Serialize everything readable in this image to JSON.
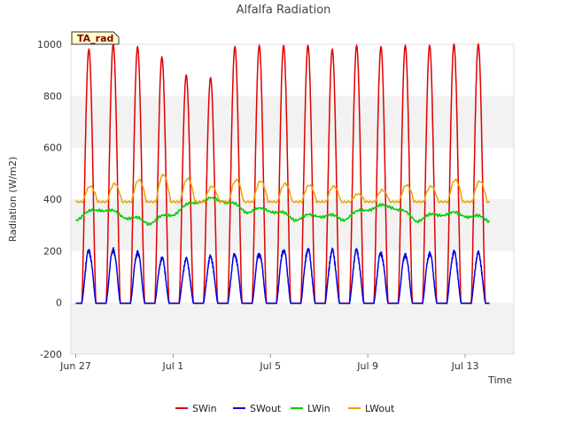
{
  "chart_data": {
    "type": "line",
    "title": "Alfalfa Radiation",
    "xlabel": "Time",
    "ylabel": "Radiation (W/m2)",
    "badge": "TA_rad",
    "x_unit": "days since Jun 27",
    "xlim": [
      -0.2,
      18.0
    ],
    "ylim": [
      -200,
      1000
    ],
    "yticks": [
      -200,
      0,
      200,
      400,
      600,
      800,
      1000
    ],
    "xticks": [
      {
        "value": 0,
        "label": "Jun 27"
      },
      {
        "value": 4,
        "label": "Jul 1"
      },
      {
        "value": 8,
        "label": "Jul 5"
      },
      {
        "value": 12,
        "label": "Jul 9"
      },
      {
        "value": 16,
        "label": "Jul 13"
      }
    ],
    "grid": "horizontal bands",
    "legend_position": "bottom",
    "days": 17,
    "series": [
      {
        "name": "SWin",
        "color": "#e00000",
        "kind": "diurnal",
        "day_start": 0.25,
        "day_end": 0.83,
        "daily_peaks": [
          980,
          1000,
          990,
          950,
          880,
          870,
          990,
          995,
          995,
          995,
          980,
          995,
          990,
          995,
          995,
          1000,
          1000
        ]
      },
      {
        "name": "SWout",
        "color": "#0000dd",
        "kind": "diurnal",
        "day_start": 0.25,
        "day_end": 0.83,
        "daily_peaks": [
          210,
          215,
          205,
          180,
          175,
          185,
          195,
          200,
          215,
          215,
          210,
          210,
          200,
          195,
          200,
          205,
          200
        ]
      },
      {
        "name": "LWin",
        "color": "#00cc00",
        "kind": "daily_mean",
        "daily_values": [
          325,
          365,
          335,
          310,
          345,
          395,
          400,
          355,
          360,
          325,
          340,
          325,
          365,
          375,
          320,
          345,
          340,
          320
        ]
      },
      {
        "name": "LWout",
        "color": "#f0a000",
        "kind": "diurnal_offset",
        "base": 390,
        "daily_peaks": [
          450,
          460,
          475,
          495,
          480,
          450,
          475,
          470,
          460,
          455,
          450,
          420,
          435,
          455,
          450,
          475,
          470
        ]
      }
    ]
  }
}
